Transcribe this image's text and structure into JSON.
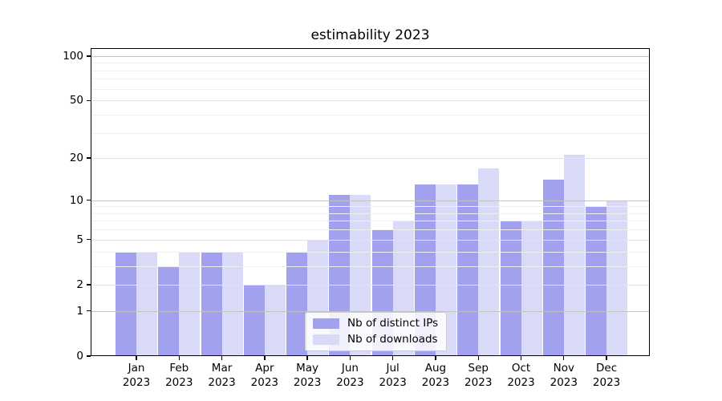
{
  "chart_data": {
    "type": "bar",
    "title": "estimability 2023",
    "categories": [
      "Jan 2023",
      "Feb 2023",
      "Mar 2023",
      "Apr 2023",
      "May 2023",
      "Jun 2023",
      "Jul 2023",
      "Aug 2023",
      "Sep 2023",
      "Oct 2023",
      "Nov 2023",
      "Dec 2023"
    ],
    "series": [
      {
        "name": "Nb of distinct IPs",
        "color": "#a1a1f0",
        "values": [
          4,
          3,
          4,
          2,
          4,
          11,
          6,
          13,
          13,
          7,
          14,
          9
        ]
      },
      {
        "name": "Nb of downloads",
        "color": "#d9d9f8",
        "values": [
          4,
          4,
          4,
          2,
          5,
          11,
          7,
          13,
          17,
          7,
          21,
          10
        ]
      }
    ],
    "yscale": "log1p",
    "ylim": [
      0,
      113
    ],
    "y_ticks": [
      100,
      50,
      20,
      10,
      5,
      2,
      1,
      0
    ],
    "y_gridlines_major": [
      1,
      10,
      100
    ],
    "y_gridlines_mid": [
      2,
      5,
      20,
      50
    ],
    "y_gridlines_minor": [
      3,
      4,
      6,
      7,
      8,
      9,
      30,
      40,
      60,
      70,
      80,
      90
    ],
    "grid": true,
    "legend_position": "lower center",
    "gridline_colors": {
      "major": "#c3c3c3",
      "mid": "#e4e4e4",
      "minor": "#efefef"
    },
    "frame_color": "#000000",
    "background": "#ffffff"
  }
}
